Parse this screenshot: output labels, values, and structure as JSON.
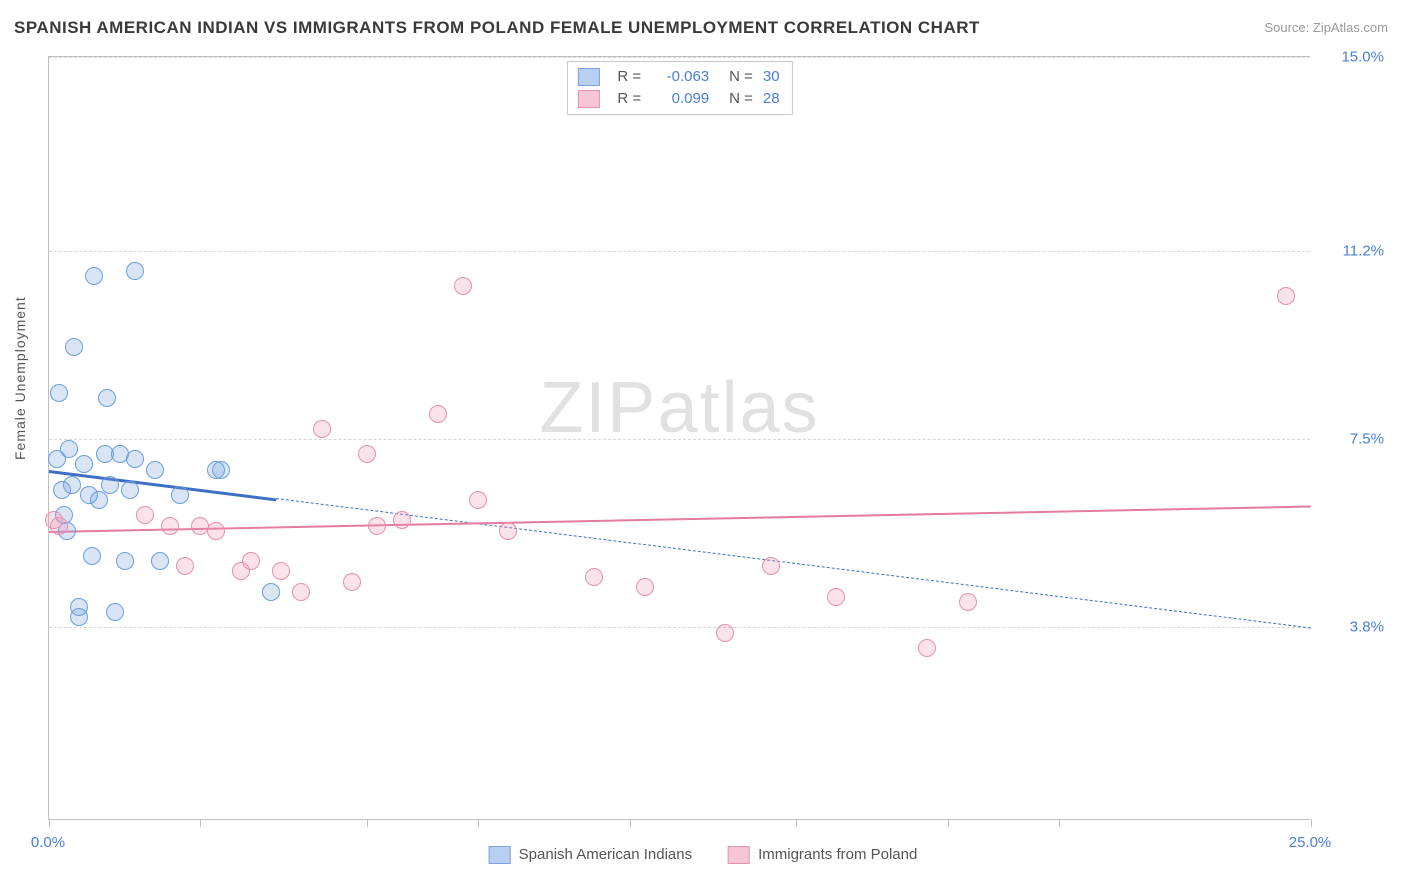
{
  "title": "SPANISH AMERICAN INDIAN VS IMMIGRANTS FROM POLAND FEMALE UNEMPLOYMENT CORRELATION CHART",
  "source_prefix": "Source: ",
  "source_name": "ZipAtlas.com",
  "y_axis_label": "Female Unemployment",
  "watermark": "ZIPatlas",
  "chart": {
    "type": "scatter",
    "xlim": [
      0.0,
      25.0
    ],
    "ylim": [
      0.0,
      15.0
    ],
    "x_ticks": [
      0.0,
      3.0,
      6.3,
      8.5,
      11.5,
      14.8,
      17.8,
      20.0,
      25.0
    ],
    "x_tick_labels": {
      "0": "0.0%",
      "25": "25.0%"
    },
    "y_gridlines": [
      3.8,
      7.5,
      11.2,
      15.0
    ],
    "y_tick_labels": [
      "3.8%",
      "7.5%",
      "11.2%",
      "15.0%"
    ],
    "background_color": "#ffffff",
    "grid_color": "#d6d6d6",
    "axis_color": "#bfbfbf",
    "label_color": "#4a7fd6",
    "marker_radius": 9,
    "marker_stroke_width": 1.5,
    "marker_fill_opacity": 0.25,
    "series": [
      {
        "key": "spanish_american_indians",
        "label": "Spanish American Indians",
        "color_stroke": "#6a9fe0",
        "color_fill": "rgba(120,160,220,0.28)",
        "swatch_fill": "#b7cff0",
        "swatch_border": "#7aa3dc",
        "R": "-0.063",
        "N": "30",
        "trend": {
          "x1": 0.0,
          "y1": 6.9,
          "x2": 25.0,
          "y2": 3.8,
          "solid_until_x": 4.5,
          "color": "#3d6fc5",
          "width_solid": 3,
          "width_dash": 1.2,
          "dash": "6,5"
        },
        "points": [
          [
            0.15,
            7.1
          ],
          [
            0.2,
            8.4
          ],
          [
            0.25,
            6.5
          ],
          [
            0.35,
            5.7
          ],
          [
            0.4,
            7.3
          ],
          [
            0.45,
            6.6
          ],
          [
            0.5,
            9.3
          ],
          [
            0.6,
            4.2
          ],
          [
            0.6,
            4.0
          ],
          [
            0.7,
            7.0
          ],
          [
            0.8,
            6.4
          ],
          [
            0.85,
            5.2
          ],
          [
            0.9,
            10.7
          ],
          [
            1.0,
            6.3
          ],
          [
            1.1,
            7.2
          ],
          [
            1.15,
            8.3
          ],
          [
            1.2,
            6.6
          ],
          [
            1.3,
            4.1
          ],
          [
            1.4,
            7.2
          ],
          [
            1.5,
            5.1
          ],
          [
            1.6,
            6.5
          ],
          [
            1.7,
            7.1
          ],
          [
            1.7,
            10.8
          ],
          [
            2.1,
            6.9
          ],
          [
            2.2,
            5.1
          ],
          [
            2.6,
            6.4
          ],
          [
            3.3,
            6.9
          ],
          [
            3.4,
            6.9
          ],
          [
            4.4,
            4.5
          ],
          [
            0.3,
            6.0
          ]
        ]
      },
      {
        "key": "immigrants_from_poland",
        "label": "Immigrants from Poland",
        "color_stroke": "#e890ad",
        "color_fill": "rgba(235,150,180,0.28)",
        "swatch_fill": "#f6c6d6",
        "swatch_border": "#e495b0",
        "R": "0.099",
        "N": "28",
        "trend": {
          "x1": 0.0,
          "y1": 5.7,
          "x2": 25.0,
          "y2": 6.2,
          "solid_until_x": 25.0,
          "color": "#e57ba0",
          "width_solid": 2.5,
          "width_dash": 1,
          "dash": "6,5"
        },
        "points": [
          [
            0.1,
            5.9
          ],
          [
            0.2,
            5.8
          ],
          [
            1.9,
            6.0
          ],
          [
            2.4,
            5.8
          ],
          [
            2.7,
            5.0
          ],
          [
            3.0,
            5.8
          ],
          [
            3.3,
            5.7
          ],
          [
            3.8,
            4.9
          ],
          [
            4.0,
            5.1
          ],
          [
            4.6,
            4.9
          ],
          [
            5.0,
            4.5
          ],
          [
            5.4,
            7.7
          ],
          [
            6.0,
            4.7
          ],
          [
            6.3,
            7.2
          ],
          [
            6.5,
            5.8
          ],
          [
            7.0,
            5.9
          ],
          [
            7.7,
            8.0
          ],
          [
            8.2,
            10.5
          ],
          [
            8.5,
            6.3
          ],
          [
            9.1,
            5.7
          ],
          [
            10.8,
            4.8
          ],
          [
            11.8,
            4.6
          ],
          [
            13.4,
            3.7
          ],
          [
            14.3,
            5.0
          ],
          [
            15.6,
            4.4
          ],
          [
            17.4,
            3.4
          ],
          [
            18.2,
            4.3
          ],
          [
            24.5,
            10.3
          ]
        ]
      }
    ]
  },
  "legend_bottom": {
    "items": [
      {
        "key": "spanish_american_indians"
      },
      {
        "key": "immigrants_from_poland"
      }
    ]
  }
}
